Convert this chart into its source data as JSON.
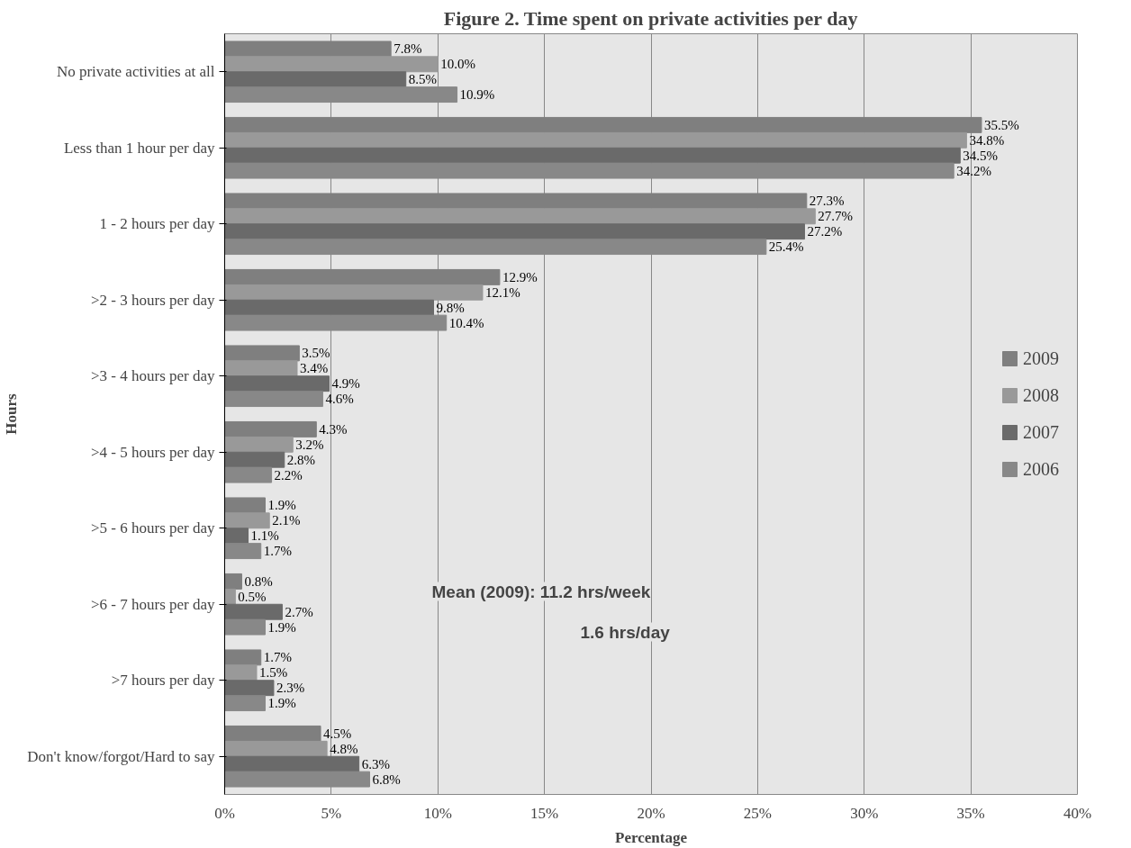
{
  "chart_data": {
    "type": "bar",
    "orientation": "horizontal",
    "title": "Figure 2. Time spent on private activities per day",
    "xlabel": "Percentage",
    "ylabel": "Hours",
    "categories": [
      "No private activities at all",
      "Less than 1 hour per day",
      "1 - 2 hours per day",
      ">2 - 3 hours per day",
      ">3 - 4 hours per day",
      ">4 - 5 hours per day",
      ">5 - 6 hours per day",
      ">6 - 7 hours per day",
      ">7 hours per day",
      "Don't know/forgot/Hard to say"
    ],
    "series": [
      {
        "name": "2009",
        "color": "#7f7f7f",
        "values": [
          7.8,
          35.5,
          27.3,
          12.9,
          3.5,
          4.3,
          1.9,
          0.8,
          1.7,
          4.5
        ],
        "value_labels": [
          "7.8%",
          "35.5%",
          "27.3%",
          "12.9%",
          "3.5%",
          "4.3%",
          "1.9%",
          "0.8%",
          "1.7%",
          "4.5%"
        ]
      },
      {
        "name": "2008",
        "color": "#999999",
        "values": [
          10.0,
          34.8,
          27.7,
          12.1,
          3.4,
          3.2,
          2.1,
          0.5,
          1.5,
          4.8
        ],
        "value_labels": [
          "10.0%",
          "34.8%",
          "27.7%",
          "12.1%",
          "3.4%",
          "3.2%",
          "2.1%",
          "0.5%",
          "1.5%",
          "4.8%"
        ]
      },
      {
        "name": "2007",
        "color": "#6a6a6a",
        "values": [
          8.5,
          34.5,
          27.2,
          9.8,
          4.9,
          2.8,
          1.1,
          2.7,
          2.3,
          6.3
        ],
        "value_labels": [
          "8.5%",
          "34.5%",
          "27.2%",
          "9.8%",
          "4.9%",
          "2.8%",
          "1.1%",
          "2.7%",
          "2.3%",
          "6.3%"
        ]
      },
      {
        "name": "2006",
        "color": "#888888",
        "values": [
          10.9,
          34.2,
          25.4,
          10.4,
          4.6,
          2.2,
          1.7,
          1.9,
          1.9,
          6.8
        ],
        "value_labels": [
          "10.9%",
          "34.2%",
          "25.4%",
          "10.4%",
          "4.6%",
          "2.2%",
          "1.7%",
          "1.9%",
          "1.9%",
          "6.8%"
        ]
      }
    ],
    "xlim": [
      0,
      40
    ],
    "xticks": [
      {
        "value": 0,
        "label": "0%"
      },
      {
        "value": 5,
        "label": "5%"
      },
      {
        "value": 10,
        "label": "10%"
      },
      {
        "value": 15,
        "label": "15%"
      },
      {
        "value": 20,
        "label": "20%"
      },
      {
        "value": 25,
        "label": "25%"
      },
      {
        "value": 30,
        "label": "30%"
      },
      {
        "value": 35,
        "label": "35%"
      },
      {
        "value": 40,
        "label": "40%"
      }
    ],
    "grid": "x",
    "legend": "right",
    "annotations": [
      "Mean (2009): 11.2 hrs/week",
      "1.6 hrs/day"
    ]
  }
}
